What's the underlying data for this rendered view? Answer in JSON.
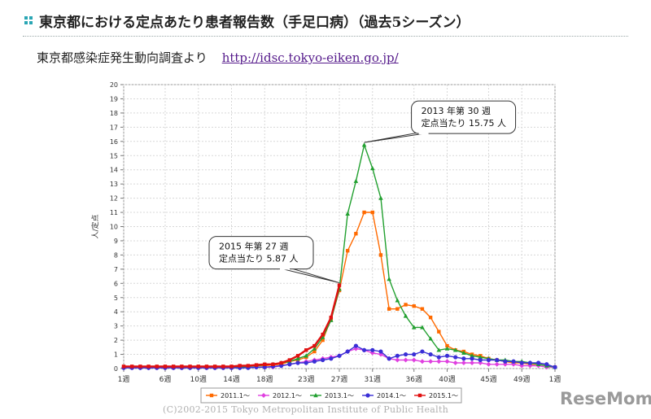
{
  "header": {
    "title": "東京都における定点あたり患者報告数（手足口病）（過去5シーズン）"
  },
  "source": {
    "label": "東京都感染症発生動向調査より",
    "url": "http://idsc.tokyo-eiken.go.jp/"
  },
  "footer": {
    "credit": "(C)2002-2015 Tokyo Metropolitan Institute of Public Health",
    "logo": "ReseMom"
  },
  "chart_data": {
    "type": "line",
    "ylabel": "人/定点",
    "ylim": [
      0,
      20
    ],
    "y_ticks": [
      0,
      1,
      2,
      3,
      4,
      5,
      6,
      7,
      8,
      9,
      10,
      11,
      12,
      13,
      14,
      15,
      16,
      17,
      18,
      19,
      20
    ],
    "x_ticks": [
      {
        "week": 1,
        "label": "1週"
      },
      {
        "week": 6,
        "label": "6週"
      },
      {
        "week": 10,
        "label": "10週"
      },
      {
        "week": 14,
        "label": "14週"
      },
      {
        "week": 18,
        "label": "18週"
      },
      {
        "week": 23,
        "label": "23週"
      },
      {
        "week": 27,
        "label": "27週"
      },
      {
        "week": 31,
        "label": "31週"
      },
      {
        "week": 36,
        "label": "36週"
      },
      {
        "week": 40,
        "label": "40週"
      },
      {
        "week": 45,
        "label": "45週"
      },
      {
        "week": 49,
        "label": "49週"
      },
      {
        "week": 53,
        "label": "1週"
      }
    ],
    "grid": true,
    "legend_position": "bottom",
    "series": [
      {
        "name": "2011.1～",
        "color": "#ff6a00",
        "marker": "square",
        "x": [
          1,
          2,
          3,
          4,
          5,
          6,
          7,
          8,
          9,
          10,
          11,
          12,
          13,
          14,
          15,
          16,
          17,
          18,
          19,
          20,
          21,
          22,
          23,
          24,
          25,
          26,
          27,
          28,
          29,
          30,
          31,
          32,
          33,
          34,
          35,
          36,
          37,
          38,
          39,
          40,
          41,
          42,
          43,
          44,
          45,
          46,
          47,
          48,
          49,
          50,
          51,
          52,
          53
        ],
        "values": [
          0.1,
          0.1,
          0.1,
          0.1,
          0.1,
          0.1,
          0.1,
          0.1,
          0.1,
          0.1,
          0.1,
          0.1,
          0.1,
          0.1,
          0.1,
          0.15,
          0.2,
          0.2,
          0.25,
          0.3,
          0.5,
          0.6,
          0.8,
          1.2,
          2.0,
          3.5,
          5.5,
          8.3,
          9.5,
          11.0,
          11.0,
          8.0,
          4.2,
          4.2,
          4.5,
          4.4,
          4.2,
          3.6,
          2.6,
          1.6,
          1.3,
          1.2,
          1.0,
          0.9,
          0.7,
          0.6,
          0.5,
          0.4,
          0.4,
          0.3,
          0.3,
          0.2,
          0.1
        ]
      },
      {
        "name": "2012.1～",
        "color": "#e040e0",
        "marker": "diamond",
        "x": [
          1,
          2,
          3,
          4,
          5,
          6,
          7,
          8,
          9,
          10,
          11,
          12,
          13,
          14,
          15,
          16,
          17,
          18,
          19,
          20,
          21,
          22,
          23,
          24,
          25,
          26,
          27,
          28,
          29,
          30,
          31,
          32,
          33,
          34,
          35,
          36,
          37,
          38,
          39,
          40,
          41,
          42,
          43,
          44,
          45,
          46,
          47,
          48,
          49,
          50,
          51,
          52,
          53
        ],
        "values": [
          0.05,
          0.05,
          0.05,
          0.05,
          0.05,
          0.05,
          0.05,
          0.05,
          0.05,
          0.05,
          0.05,
          0.05,
          0.05,
          0.05,
          0.05,
          0.1,
          0.1,
          0.1,
          0.1,
          0.2,
          0.3,
          0.4,
          0.5,
          0.6,
          0.7,
          0.8,
          0.9,
          1.2,
          1.4,
          1.3,
          1.1,
          1.0,
          0.7,
          0.6,
          0.6,
          0.6,
          0.5,
          0.5,
          0.5,
          0.5,
          0.4,
          0.4,
          0.4,
          0.4,
          0.3,
          0.3,
          0.3,
          0.3,
          0.2,
          0.2,
          0.2,
          0.1,
          0.1
        ]
      },
      {
        "name": "2013.1～",
        "color": "#22a030",
        "marker": "triangle",
        "x": [
          1,
          2,
          3,
          4,
          5,
          6,
          7,
          8,
          9,
          10,
          11,
          12,
          13,
          14,
          15,
          16,
          17,
          18,
          19,
          20,
          21,
          22,
          23,
          24,
          25,
          26,
          27,
          28,
          29,
          30,
          31,
          32,
          33,
          34,
          35,
          36,
          37,
          38,
          39,
          40,
          41,
          42,
          43,
          44,
          45,
          46,
          47,
          48,
          49,
          50,
          51,
          52,
          53
        ],
        "values": [
          0.1,
          0.1,
          0.1,
          0.1,
          0.1,
          0.1,
          0.1,
          0.1,
          0.1,
          0.1,
          0.1,
          0.1,
          0.1,
          0.1,
          0.1,
          0.15,
          0.2,
          0.25,
          0.3,
          0.4,
          0.5,
          0.7,
          0.9,
          1.4,
          2.2,
          3.4,
          5.6,
          10.9,
          13.2,
          15.75,
          14.1,
          12.0,
          6.3,
          4.8,
          3.7,
          2.9,
          2.9,
          2.1,
          1.3,
          1.4,
          1.3,
          1.1,
          0.9,
          0.8,
          0.7,
          0.6,
          0.6,
          0.5,
          0.5,
          0.4,
          0.3,
          0.2,
          0.1
        ]
      },
      {
        "name": "2014.1～",
        "color": "#3a2fd6",
        "marker": "circle",
        "x": [
          1,
          2,
          3,
          4,
          5,
          6,
          7,
          8,
          9,
          10,
          11,
          12,
          13,
          14,
          15,
          16,
          17,
          18,
          19,
          20,
          21,
          22,
          23,
          24,
          25,
          26,
          27,
          28,
          29,
          30,
          31,
          32,
          33,
          34,
          35,
          36,
          37,
          38,
          39,
          40,
          41,
          42,
          43,
          44,
          45,
          46,
          47,
          48,
          49,
          50,
          51,
          52,
          53
        ],
        "values": [
          0.05,
          0.05,
          0.05,
          0.05,
          0.05,
          0.05,
          0.05,
          0.05,
          0.05,
          0.05,
          0.05,
          0.05,
          0.05,
          0.05,
          0.05,
          0.05,
          0.1,
          0.1,
          0.15,
          0.2,
          0.3,
          0.4,
          0.4,
          0.5,
          0.6,
          0.7,
          0.9,
          1.2,
          1.6,
          1.3,
          1.3,
          1.2,
          0.7,
          0.9,
          1.0,
          1.0,
          1.2,
          1.0,
          0.8,
          0.9,
          0.8,
          0.7,
          0.7,
          0.6,
          0.6,
          0.6,
          0.5,
          0.5,
          0.4,
          0.4,
          0.4,
          0.3,
          0.1
        ]
      },
      {
        "name": "2015.1～",
        "color": "#e01010",
        "marker": "square",
        "x": [
          1,
          2,
          3,
          4,
          5,
          6,
          7,
          8,
          9,
          10,
          11,
          12,
          13,
          14,
          15,
          16,
          17,
          18,
          19,
          20,
          21,
          22,
          23,
          24,
          25,
          26,
          27
        ],
        "values": [
          0.15,
          0.15,
          0.15,
          0.15,
          0.15,
          0.15,
          0.15,
          0.15,
          0.15,
          0.15,
          0.15,
          0.15,
          0.15,
          0.15,
          0.2,
          0.2,
          0.25,
          0.3,
          0.3,
          0.4,
          0.6,
          0.9,
          1.3,
          1.6,
          2.4,
          3.6,
          5.87
        ]
      }
    ],
    "annotations": [
      {
        "lines": [
          "2013 年第 30 週",
          "定点当たり 15.75 人"
        ],
        "series": "2013.1～",
        "week": 30,
        "value": 15.75
      },
      {
        "lines": [
          "2015 年第 27 週",
          "定点当たり 5.87 人"
        ],
        "series": "2015.1～",
        "week": 27,
        "value": 5.87
      }
    ]
  }
}
